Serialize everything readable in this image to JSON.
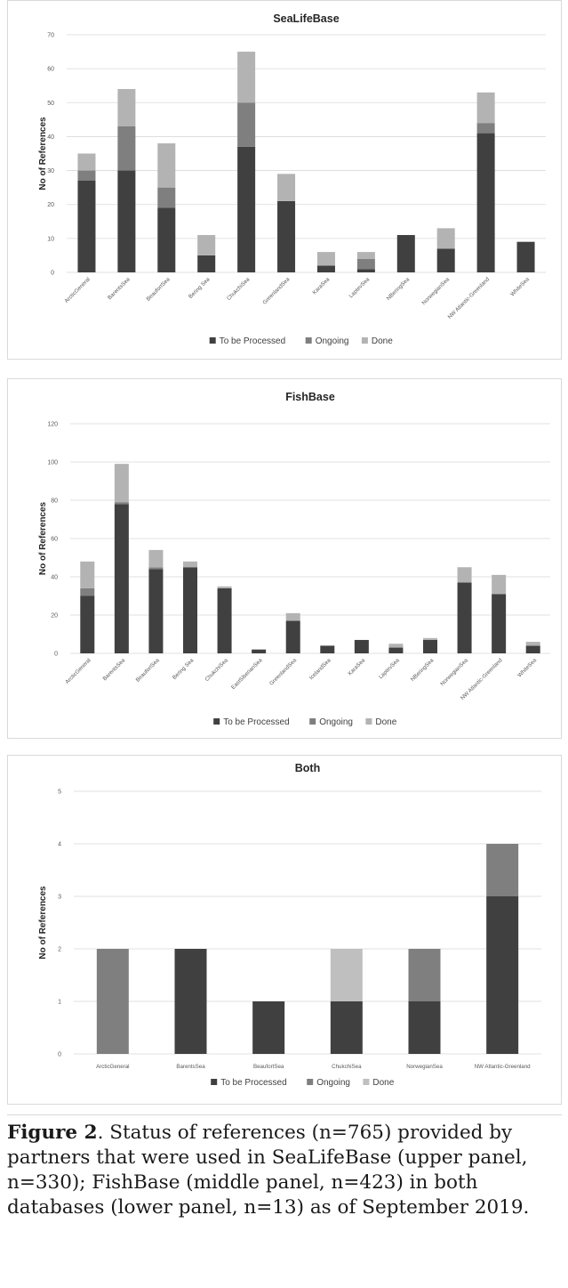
{
  "colors": {
    "to_be_processed": "#404040",
    "ongoing": "#7f7f7f",
    "done": "#b3b3b3",
    "done_both": "#bfbfbf",
    "grid": "#d9d9d9"
  },
  "chart_data": [
    {
      "type": "bar",
      "stacked": true,
      "title": "SeaLifeBase",
      "ylabel": "No of References",
      "ylim": [
        0,
        70
      ],
      "yticks": [
        0,
        10,
        20,
        30,
        40,
        50,
        60,
        70
      ],
      "grid": true,
      "legend_position": "bottom",
      "categories": [
        "ArcticGeneral",
        "BarentsSea",
        "BeaufortSea",
        "Bering Sea",
        "ChukchiSea",
        "GreenlandSea",
        "KaraSea",
        "LaptevSea",
        "NBeringSea",
        "NorwegianSea",
        "NW Atlantic-Greenland",
        "WhiteSea"
      ],
      "series": [
        {
          "name": "To be Processed",
          "values": [
            27,
            30,
            19,
            5,
            37,
            21,
            2,
            1,
            11,
            7,
            41,
            9
          ]
        },
        {
          "name": "Ongoing",
          "values": [
            3,
            13,
            6,
            0,
            13,
            0,
            0,
            3,
            0,
            0,
            3,
            0
          ]
        },
        {
          "name": "Done",
          "values": [
            5,
            11,
            13,
            6,
            15,
            8,
            4,
            2,
            0,
            6,
            9,
            0
          ]
        }
      ]
    },
    {
      "type": "bar",
      "stacked": true,
      "title": "FishBase",
      "ylabel": "No of References",
      "ylim": [
        0,
        120
      ],
      "yticks": [
        0,
        20,
        40,
        60,
        80,
        100,
        120
      ],
      "grid": true,
      "legend_position": "bottom",
      "categories": [
        "ArcticGeneral",
        "BarentsSea",
        "BeaufortSea",
        "Bering Sea",
        "ChukchiSea",
        "EastSiberianSea",
        "GreenlandSea",
        "IcelandSea",
        "KaraSea",
        "LaptevSea",
        "NBeringSea",
        "NorwegianSea",
        "NW Atlantic-Greenland",
        "WhiteSea"
      ],
      "series": [
        {
          "name": "To be Processed",
          "values": [
            30,
            78,
            44,
            45,
            34,
            2,
            17,
            4,
            7,
            3,
            7,
            37,
            31,
            4
          ]
        },
        {
          "name": "Ongoing",
          "values": [
            4,
            1,
            1,
            0,
            0,
            0,
            0,
            0,
            0,
            0,
            0,
            0,
            0,
            0
          ]
        },
        {
          "name": "Done",
          "values": [
            14,
            20,
            9,
            3,
            1,
            0,
            4,
            0,
            0,
            2,
            1,
            8,
            10,
            2
          ]
        }
      ]
    },
    {
      "type": "bar",
      "stacked": true,
      "title": "Both",
      "ylabel": "No of References",
      "ylim": [
        0,
        5
      ],
      "yticks": [
        0,
        1,
        2,
        3,
        4,
        5
      ],
      "grid": true,
      "legend_position": "bottom",
      "categories": [
        "ArcticGeneral",
        "BarentsSea",
        "BeaufortSea",
        "ChukchiSea",
        "NorwegianSea",
        "NW Atlantic-Greenland"
      ],
      "series": [
        {
          "name": "To be Processed",
          "values": [
            0,
            2,
            1,
            1,
            1,
            3
          ]
        },
        {
          "name": "Ongoing",
          "values": [
            2,
            0,
            0,
            0,
            1,
            1
          ]
        },
        {
          "name": "Done",
          "values": [
            0,
            0,
            0,
            1,
            0,
            0
          ]
        }
      ]
    }
  ],
  "caption": {
    "label": "Figure 2",
    "text": ". Status of references (n=765) provided by partners that were used in SeaLifeBase (upper panel, n=330); FishBase (middle panel, n=423) in both databases (lower panel, n=13) as of September 2019."
  }
}
